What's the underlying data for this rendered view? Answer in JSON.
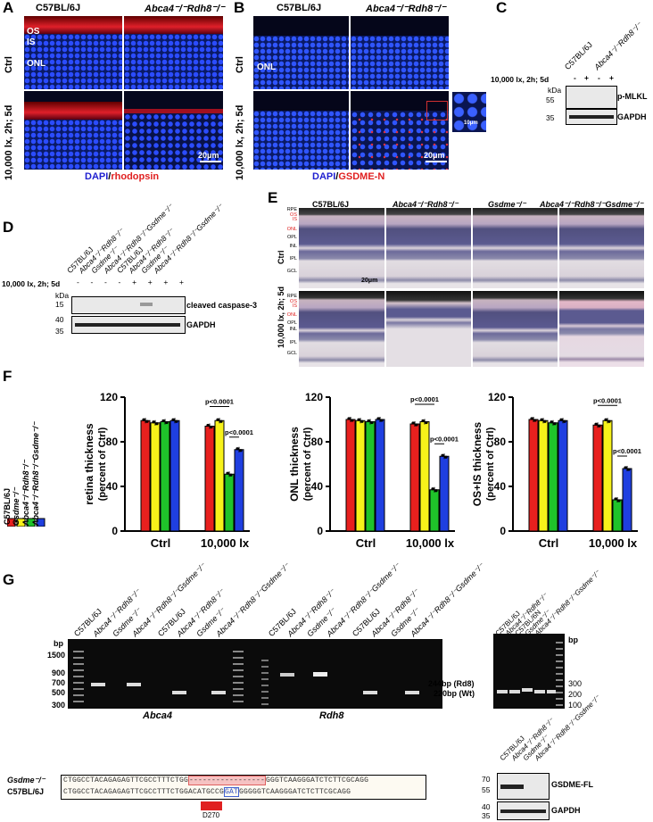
{
  "panels": {
    "A": "A",
    "B": "B",
    "C": "C",
    "D": "D",
    "E": "E",
    "F": "F",
    "G": "G"
  },
  "strains": {
    "wt": "C57BL/6J",
    "dko": "Abca4⁻/⁻Rdh8⁻/⁻",
    "gsdme": "Gsdme⁻/⁻",
    "tko": "Abca4⁻/⁻Rdh8⁻/⁻Gsdme⁻/⁻",
    "wt6n": "C57BL/6N"
  },
  "conditions": {
    "ctrl": "Ctrl",
    "light": "10,000 lx, 2h; 5d",
    "light_short": "10,000 lx"
  },
  "panelA": {
    "os": "OS",
    "is": "IS",
    "onl": "ONL",
    "scale": "20μm",
    "stain_dapi": "DAPI",
    "stain_sep": "/",
    "stain_marker": "rhodopsin"
  },
  "panelB": {
    "onl": "ONL",
    "scale": "20μm",
    "inset_scale": "10μm",
    "stain_dapi": "DAPI",
    "stain_sep": "/",
    "stain_marker": "GSDME-N"
  },
  "panelC": {
    "treat_label": "10,000 lx, 2h; 5d",
    "signs": [
      "-",
      "+",
      "-",
      "+"
    ],
    "kda": "kDa",
    "mw": [
      "55",
      "35"
    ],
    "bands": [
      "p-MLKL",
      "GAPDH"
    ]
  },
  "panelD": {
    "treat_label": "10,000 lx, 2h; 5d",
    "signs": [
      "-",
      "-",
      "-",
      "-",
      "+",
      "+",
      "+",
      "+"
    ],
    "kda": "kDa",
    "mw": [
      "15",
      "40",
      "35"
    ],
    "bands": [
      "cleaved caspase-3",
      "GAPDH"
    ]
  },
  "panelE": {
    "layers_top": [
      "RPE",
      "OS",
      "IS",
      "ONL",
      "OPL",
      "INL",
      "IPL",
      "GCL"
    ],
    "layers_bottom": [
      "RPE",
      "OS",
      "IS",
      "ONL",
      "OPL",
      "INL",
      "IPL",
      "GCL"
    ],
    "scale": "20μm"
  },
  "panelG": {
    "bp": "bp",
    "ladder_left": [
      "1500",
      "900",
      "700",
      "500",
      "300"
    ],
    "ladder_right": [
      "300",
      "200",
      "100"
    ],
    "gene1": "Abca4",
    "gene2": "Rdh8",
    "band_rd8": "244bp (Rd8)",
    "band_wt": "220bp (Wt)",
    "seq_label_ko": "Gsdme⁻/⁻",
    "seq_label_wt": "C57BL/6J",
    "seq_ko_a": "CTGGCCTACAGAGAGTTCGCCTTTCTGG",
    "seq_ko_del": "-----------------",
    "seq_ko_b": "GGGTCAAGGGATCTCTTCGCAGG",
    "seq_wt_a": "CTGGCCTACAGAGAGTTCGCCTTTCTGGACATGCCG",
    "seq_wt_box": "GAT",
    "seq_wt_b": "GGGGGTCAAGGGATCTCTTCGCAGG",
    "site": "D270",
    "blot_bands": [
      "GSDME-FL",
      "GAPDH"
    ],
    "blot_mw": [
      "70",
      "55",
      "40",
      "35"
    ]
  },
  "colors": {
    "wt": "#e8201e",
    "dko": "#f7f21a",
    "gsdme": "#1fc32a",
    "tko": "#1f3fe0",
    "red": "#e02020"
  },
  "chart_data": [
    {
      "type": "bar",
      "ylabel": "retina thickness (percent of Ctrl)",
      "categories": [
        "Ctrl",
        "10,000 lx"
      ],
      "ylim": [
        0,
        120
      ],
      "ticks": [
        "0",
        "40",
        "80",
        "120"
      ],
      "series": [
        {
          "name": "C57BL/6J",
          "values": [
            99,
            94
          ]
        },
        {
          "name": "Gsdme⁻/⁻",
          "values": [
            97,
            99
          ]
        },
        {
          "name": "Abca4⁻/⁻Rdh8⁻/⁻",
          "values": [
            98,
            51
          ]
        },
        {
          "name": "Abca4⁻/⁻Rdh8⁻/⁻Gsdme⁻/⁻",
          "values": [
            99,
            73
          ]
        }
      ],
      "annotations": [
        "p<0.0001",
        "p<0.0001"
      ]
    },
    {
      "type": "bar",
      "ylabel": "ONL thickness (percent of Ctrl)",
      "categories": [
        "Ctrl",
        "10,000 lx"
      ],
      "ylim": [
        0,
        120
      ],
      "ticks": [
        "0",
        "40",
        "80",
        "120"
      ],
      "series": [
        {
          "name": "C57BL/6J",
          "values": [
            100,
            96
          ]
        },
        {
          "name": "Gsdme⁻/⁻",
          "values": [
            99,
            98
          ]
        },
        {
          "name": "Abca4⁻/⁻Rdh8⁻/⁻",
          "values": [
            98,
            37
          ]
        },
        {
          "name": "Abca4⁻/⁻Rdh8⁻/⁻Gsdme⁻/⁻",
          "values": [
            100,
            67
          ]
        }
      ],
      "annotations": [
        "p<0.0001",
        "p<0.0001"
      ]
    },
    {
      "type": "bar",
      "ylabel": "OS+IS thickness (percent of Ctrl)",
      "categories": [
        "Ctrl",
        "10,000 lx"
      ],
      "ylim": [
        0,
        120
      ],
      "ticks": [
        "0",
        "40",
        "80",
        "120"
      ],
      "series": [
        {
          "name": "C57BL/6J",
          "values": [
            100,
            95
          ]
        },
        {
          "name": "Gsdme⁻/⁻",
          "values": [
            99,
            99
          ]
        },
        {
          "name": "Abca4⁻/⁻Rdh8⁻/⁻",
          "values": [
            97,
            28
          ]
        },
        {
          "name": "Abca4⁻/⁻Rdh8⁻/⁻Gsdme⁻/⁻",
          "values": [
            99,
            56
          ]
        }
      ],
      "annotations": [
        "p<0.0001",
        "p<0.0001"
      ]
    }
  ]
}
